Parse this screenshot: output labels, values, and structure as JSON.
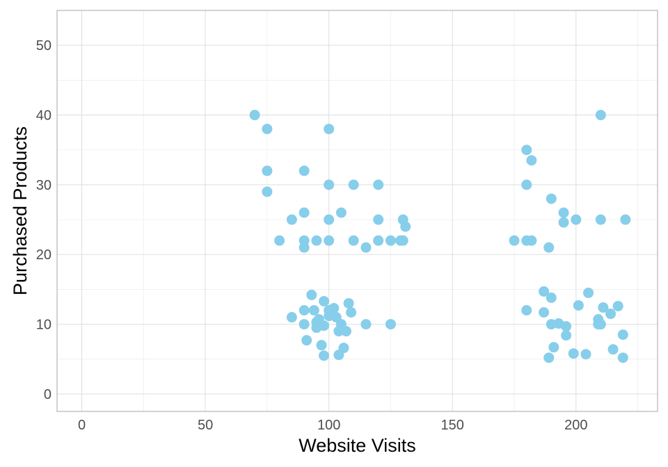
{
  "chart_data": {
    "type": "scatter",
    "title": "",
    "xlabel": "Website Visits",
    "ylabel": "Purchased Products",
    "xlim": [
      -10,
      233
    ],
    "ylim": [
      -2.5,
      55
    ],
    "x_ticks": [
      0,
      50,
      100,
      150,
      200
    ],
    "y_ticks": [
      0,
      10,
      20,
      30,
      40,
      50
    ],
    "x_tick_labels": [
      "0",
      "50",
      "100",
      "150",
      "200"
    ],
    "y_tick_labels": [
      "0",
      "10",
      "20",
      "30",
      "40",
      "50"
    ],
    "grid": true,
    "point_color": "#87CEEB",
    "points": [
      {
        "x": 70,
        "y": 40
      },
      {
        "x": 75,
        "y": 38
      },
      {
        "x": 75,
        "y": 32
      },
      {
        "x": 75,
        "y": 29
      },
      {
        "x": 80,
        "y": 22
      },
      {
        "x": 85,
        "y": 25
      },
      {
        "x": 90,
        "y": 32
      },
      {
        "x": 90,
        "y": 26
      },
      {
        "x": 90,
        "y": 22
      },
      {
        "x": 90,
        "y": 21
      },
      {
        "x": 95,
        "y": 22
      },
      {
        "x": 100,
        "y": 38
      },
      {
        "x": 100,
        "y": 30
      },
      {
        "x": 100,
        "y": 25
      },
      {
        "x": 100,
        "y": 22
      },
      {
        "x": 105,
        "y": 26
      },
      {
        "x": 110,
        "y": 30
      },
      {
        "x": 110,
        "y": 22
      },
      {
        "x": 115,
        "y": 21
      },
      {
        "x": 120,
        "y": 30
      },
      {
        "x": 120,
        "y": 25
      },
      {
        "x": 120,
        "y": 22
      },
      {
        "x": 125,
        "y": 22
      },
      {
        "x": 129,
        "y": 22
      },
      {
        "x": 130,
        "y": 25
      },
      {
        "x": 130,
        "y": 22
      },
      {
        "x": 131,
        "y": 24
      },
      {
        "x": 85,
        "y": 11
      },
      {
        "x": 90,
        "y": 12
      },
      {
        "x": 90,
        "y": 10
      },
      {
        "x": 91,
        "y": 7.7
      },
      {
        "x": 93,
        "y": 14.2
      },
      {
        "x": 94,
        "y": 12
      },
      {
        "x": 95,
        "y": 10.3
      },
      {
        "x": 95,
        "y": 9.5
      },
      {
        "x": 96,
        "y": 10.7
      },
      {
        "x": 97,
        "y": 7
      },
      {
        "x": 98,
        "y": 9.8
      },
      {
        "x": 98,
        "y": 5.5
      },
      {
        "x": 98,
        "y": 13.3
      },
      {
        "x": 100,
        "y": 12
      },
      {
        "x": 100,
        "y": 11.2
      },
      {
        "x": 102,
        "y": 12.3
      },
      {
        "x": 103,
        "y": 11
      },
      {
        "x": 104,
        "y": 9
      },
      {
        "x": 104,
        "y": 5.6
      },
      {
        "x": 105,
        "y": 10
      },
      {
        "x": 106,
        "y": 6.6
      },
      {
        "x": 107,
        "y": 9
      },
      {
        "x": 108,
        "y": 13
      },
      {
        "x": 109,
        "y": 11.7
      },
      {
        "x": 115,
        "y": 10
      },
      {
        "x": 125,
        "y": 10
      },
      {
        "x": 175,
        "y": 22
      },
      {
        "x": 180,
        "y": 35
      },
      {
        "x": 180,
        "y": 30
      },
      {
        "x": 180,
        "y": 22
      },
      {
        "x": 182,
        "y": 33.5
      },
      {
        "x": 182,
        "y": 22
      },
      {
        "x": 189,
        "y": 21
      },
      {
        "x": 190,
        "y": 28
      },
      {
        "x": 195,
        "y": 26
      },
      {
        "x": 195,
        "y": 24.6
      },
      {
        "x": 200,
        "y": 25
      },
      {
        "x": 210,
        "y": 40
      },
      {
        "x": 210,
        "y": 25
      },
      {
        "x": 220,
        "y": 25
      },
      {
        "x": 180,
        "y": 12
      },
      {
        "x": 187,
        "y": 14.7
      },
      {
        "x": 187,
        "y": 11.7
      },
      {
        "x": 189,
        "y": 5.2
      },
      {
        "x": 190,
        "y": 10
      },
      {
        "x": 190,
        "y": 13.8
      },
      {
        "x": 191,
        "y": 6.7
      },
      {
        "x": 193,
        "y": 10.1
      },
      {
        "x": 196,
        "y": 9.7
      },
      {
        "x": 196,
        "y": 8.4
      },
      {
        "x": 199,
        "y": 5.8
      },
      {
        "x": 201,
        "y": 12.7
      },
      {
        "x": 204,
        "y": 5.7
      },
      {
        "x": 205,
        "y": 14.5
      },
      {
        "x": 209,
        "y": 10.7
      },
      {
        "x": 209,
        "y": 10
      },
      {
        "x": 210,
        "y": 10
      },
      {
        "x": 211,
        "y": 12.4
      },
      {
        "x": 214,
        "y": 11.5
      },
      {
        "x": 215,
        "y": 6.4
      },
      {
        "x": 217,
        "y": 12.6
      },
      {
        "x": 219,
        "y": 8.5
      },
      {
        "x": 219,
        "y": 5.2
      }
    ]
  }
}
